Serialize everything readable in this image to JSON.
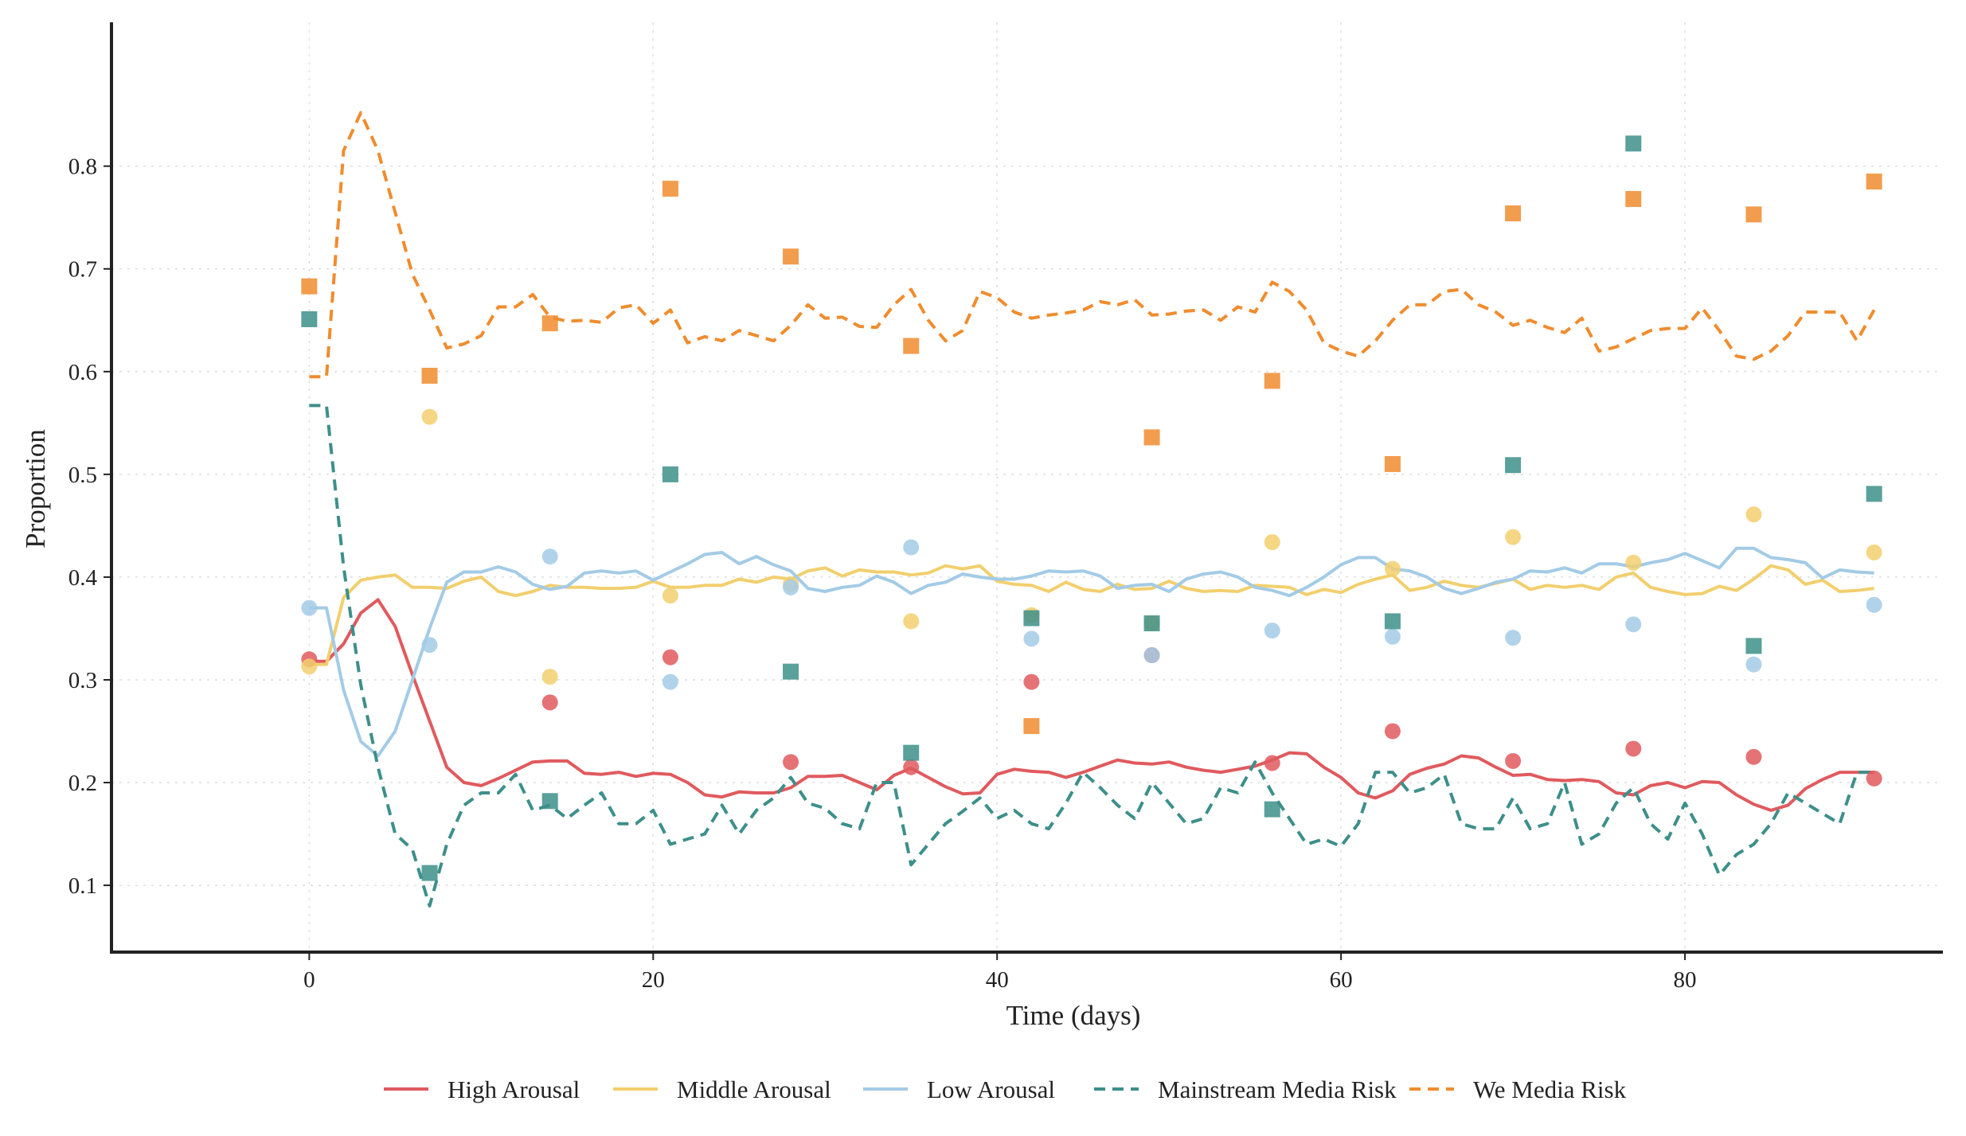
{
  "chart_data": {
    "type": "line",
    "title": "",
    "xlabel": "Time (days)",
    "ylabel": "Proportion",
    "xlim": [
      -11.5,
      95
    ],
    "ylim": [
      0.035,
      0.94
    ],
    "xticks": [
      0,
      20,
      40,
      60,
      80
    ],
    "yticks": [
      0.1,
      0.2,
      0.3,
      0.4,
      0.5,
      0.6,
      0.7,
      0.8
    ],
    "grid": true,
    "legend_position": "bottom-center",
    "x": [
      0,
      1,
      2,
      3,
      4,
      5,
      6,
      7,
      8,
      9,
      10,
      11,
      12,
      13,
      14,
      15,
      16,
      17,
      18,
      19,
      20,
      21,
      22,
      23,
      24,
      25,
      26,
      27,
      28,
      29,
      30,
      31,
      32,
      33,
      34,
      35,
      36,
      37,
      38,
      39,
      40,
      41,
      42,
      43,
      44,
      45,
      46,
      47,
      48,
      49,
      50,
      51,
      52,
      53,
      54,
      55,
      56,
      57,
      58,
      59,
      60,
      61,
      62,
      63,
      64,
      65,
      66,
      67,
      68,
      69,
      70,
      71,
      72,
      73,
      74,
      75,
      76,
      77,
      78,
      79,
      80,
      81,
      82,
      83,
      84,
      85,
      86,
      87,
      88,
      89,
      90,
      91
    ],
    "series": [
      {
        "name": "High Arousal",
        "color": "#e05a5e",
        "dash": "solid",
        "values": [
          0.318,
          0.318,
          0.335,
          0.365,
          0.378,
          0.352,
          0.305,
          0.26,
          0.215,
          0.2,
          0.197,
          0.204,
          0.212,
          0.22,
          0.221,
          0.221,
          0.209,
          0.208,
          0.21,
          0.206,
          0.209,
          0.208,
          0.2,
          0.188,
          0.186,
          0.191,
          0.19,
          0.19,
          0.195,
          0.206,
          0.206,
          0.207,
          0.2,
          0.193,
          0.207,
          0.214,
          0.205,
          0.196,
          0.189,
          0.19,
          0.208,
          0.213,
          0.211,
          0.21,
          0.205,
          0.21,
          0.216,
          0.222,
          0.219,
          0.218,
          0.22,
          0.215,
          0.212,
          0.21,
          0.213,
          0.216,
          0.222,
          0.229,
          0.228,
          0.215,
          0.205,
          0.19,
          0.185,
          0.192,
          0.208,
          0.214,
          0.218,
          0.226,
          0.224,
          0.215,
          0.207,
          0.208,
          0.203,
          0.202,
          0.203,
          0.201,
          0.19,
          0.188,
          0.197,
          0.2,
          0.195,
          0.201,
          0.2,
          0.188,
          0.179,
          0.173,
          0.178,
          0.194,
          0.203,
          0.21,
          0.21,
          0.21
        ]
      },
      {
        "name": "Middle Arousal",
        "color": "#f2cf6e",
        "dash": "solid",
        "values": [
          0.315,
          0.315,
          0.38,
          0.397,
          0.4,
          0.402,
          0.39,
          0.39,
          0.389,
          0.396,
          0.4,
          0.386,
          0.382,
          0.386,
          0.392,
          0.39,
          0.39,
          0.389,
          0.389,
          0.39,
          0.396,
          0.39,
          0.39,
          0.392,
          0.392,
          0.398,
          0.395,
          0.4,
          0.398,
          0.406,
          0.409,
          0.401,
          0.407,
          0.405,
          0.405,
          0.402,
          0.404,
          0.411,
          0.408,
          0.411,
          0.396,
          0.393,
          0.392,
          0.386,
          0.395,
          0.388,
          0.386,
          0.393,
          0.388,
          0.389,
          0.396,
          0.389,
          0.386,
          0.387,
          0.386,
          0.392,
          0.391,
          0.39,
          0.383,
          0.388,
          0.385,
          0.393,
          0.398,
          0.402,
          0.387,
          0.39,
          0.396,
          0.392,
          0.39,
          0.394,
          0.398,
          0.388,
          0.392,
          0.39,
          0.392,
          0.388,
          0.4,
          0.404,
          0.39,
          0.386,
          0.383,
          0.384,
          0.391,
          0.387,
          0.398,
          0.411,
          0.407,
          0.393,
          0.397,
          0.386,
          0.387,
          0.389
        ]
      },
      {
        "name": "Low Arousal",
        "color": "#a3cbe6",
        "dash": "solid",
        "values": [
          0.37,
          0.37,
          0.29,
          0.24,
          0.226,
          0.25,
          0.3,
          0.35,
          0.395,
          0.405,
          0.405,
          0.41,
          0.405,
          0.393,
          0.388,
          0.391,
          0.404,
          0.406,
          0.404,
          0.406,
          0.397,
          0.405,
          0.413,
          0.422,
          0.424,
          0.413,
          0.42,
          0.412,
          0.406,
          0.389,
          0.386,
          0.39,
          0.392,
          0.401,
          0.395,
          0.384,
          0.392,
          0.395,
          0.403,
          0.4,
          0.398,
          0.398,
          0.401,
          0.406,
          0.405,
          0.406,
          0.401,
          0.389,
          0.392,
          0.393,
          0.386,
          0.398,
          0.403,
          0.405,
          0.4,
          0.39,
          0.387,
          0.382,
          0.39,
          0.4,
          0.412,
          0.419,
          0.419,
          0.408,
          0.406,
          0.4,
          0.389,
          0.384,
          0.389,
          0.395,
          0.398,
          0.406,
          0.405,
          0.409,
          0.404,
          0.413,
          0.413,
          0.41,
          0.414,
          0.417,
          0.423,
          0.416,
          0.409,
          0.428,
          0.428,
          0.419,
          0.417,
          0.414,
          0.399,
          0.407,
          0.405,
          0.404
        ]
      },
      {
        "name": "Mainstream Media Risk",
        "color": "#3d8f8a",
        "dash": "dashed",
        "values": [
          0.567,
          0.567,
          0.41,
          0.295,
          0.215,
          0.15,
          0.135,
          0.08,
          0.14,
          0.178,
          0.19,
          0.19,
          0.208,
          0.173,
          0.178,
          0.165,
          0.178,
          0.19,
          0.16,
          0.16,
          0.173,
          0.14,
          0.145,
          0.15,
          0.178,
          0.15,
          0.173,
          0.185,
          0.205,
          0.18,
          0.175,
          0.16,
          0.155,
          0.2,
          0.2,
          0.12,
          0.14,
          0.16,
          0.172,
          0.185,
          0.165,
          0.173,
          0.16,
          0.155,
          0.18,
          0.21,
          0.195,
          0.178,
          0.165,
          0.2,
          0.18,
          0.16,
          0.165,
          0.195,
          0.19,
          0.22,
          0.19,
          0.165,
          0.14,
          0.145,
          0.138,
          0.16,
          0.21,
          0.21,
          0.19,
          0.195,
          0.208,
          0.16,
          0.155,
          0.155,
          0.185,
          0.155,
          0.16,
          0.2,
          0.14,
          0.15,
          0.18,
          0.195,
          0.16,
          0.145,
          0.18,
          0.15,
          0.11,
          0.13,
          0.14,
          0.16,
          0.19,
          0.18,
          0.17,
          0.16,
          0.21,
          0.21
        ]
      },
      {
        "name": "We Media Risk",
        "color": "#f08c2e",
        "dash": "dashed",
        "values": [
          0.595,
          0.595,
          0.815,
          0.852,
          0.815,
          0.755,
          0.695,
          0.66,
          0.623,
          0.627,
          0.635,
          0.663,
          0.663,
          0.675,
          0.653,
          0.649,
          0.65,
          0.648,
          0.662,
          0.665,
          0.647,
          0.66,
          0.628,
          0.634,
          0.63,
          0.64,
          0.635,
          0.63,
          0.645,
          0.665,
          0.652,
          0.653,
          0.644,
          0.643,
          0.665,
          0.68,
          0.65,
          0.63,
          0.64,
          0.678,
          0.672,
          0.658,
          0.652,
          0.655,
          0.657,
          0.66,
          0.668,
          0.665,
          0.67,
          0.655,
          0.656,
          0.659,
          0.66,
          0.65,
          0.663,
          0.658,
          0.687,
          0.678,
          0.66,
          0.628,
          0.62,
          0.615,
          0.63,
          0.65,
          0.665,
          0.665,
          0.678,
          0.68,
          0.665,
          0.658,
          0.645,
          0.65,
          0.643,
          0.638,
          0.652,
          0.62,
          0.624,
          0.632,
          0.64,
          0.642,
          0.642,
          0.662,
          0.64,
          0.615,
          0.612,
          0.62,
          0.635,
          0.658,
          0.658,
          0.658,
          0.63,
          0.66
        ]
      }
    ],
    "scatter_series": [
      {
        "name": "High Arousal",
        "marker": "circle",
        "color": "#e05a5e",
        "x": [
          0,
          14,
          21,
          28,
          35,
          42,
          49,
          56,
          63,
          70,
          77,
          84,
          91
        ],
        "values": [
          0.32,
          0.278,
          0.322,
          0.22,
          0.215,
          0.298,
          0.324,
          0.219,
          0.25,
          0.221,
          0.233,
          0.225,
          0.204
        ]
      },
      {
        "name": "Middle Arousal",
        "marker": "circle",
        "color": "#f2cf6e",
        "x": [
          0,
          7,
          14,
          21,
          28,
          35,
          42,
          49,
          56,
          63,
          70,
          77,
          84,
          91
        ],
        "values": [
          0.313,
          0.556,
          0.303,
          0.382,
          0.393,
          0.357,
          0.363,
          0.355,
          0.434,
          0.408,
          0.439,
          0.414,
          0.461,
          0.424
        ]
      },
      {
        "name": "Low Arousal",
        "marker": "circle",
        "color": "#a3cbe6",
        "x": [
          0,
          7,
          14,
          21,
          28,
          35,
          42,
          49,
          56,
          63,
          70,
          77,
          84,
          91
        ],
        "values": [
          0.37,
          0.334,
          0.42,
          0.298,
          0.39,
          0.429,
          0.34,
          0.324,
          0.348,
          0.342,
          0.341,
          0.354,
          0.315,
          0.373
        ]
      },
      {
        "name": "Mainstream Media Risk",
        "marker": "square",
        "color": "#3d8f8a",
        "x": [
          0,
          7,
          14,
          21,
          28,
          35,
          42,
          49,
          56,
          63,
          70,
          77,
          84,
          91
        ],
        "values": [
          0.651,
          0.112,
          0.182,
          0.5,
          0.308,
          0.229,
          0.36,
          0.355,
          0.174,
          0.357,
          0.509,
          0.822,
          0.333,
          0.481
        ]
      },
      {
        "name": "We Media Risk",
        "marker": "square",
        "color": "#f08c2e",
        "x": [
          0,
          7,
          14,
          21,
          28,
          35,
          42,
          49,
          56,
          63,
          70,
          77,
          84,
          91
        ],
        "values": [
          0.683,
          0.596,
          0.647,
          0.778,
          0.712,
          0.625,
          0.255,
          0.536,
          0.591,
          0.51,
          0.754,
          0.768,
          0.753,
          0.785
        ]
      }
    ]
  }
}
